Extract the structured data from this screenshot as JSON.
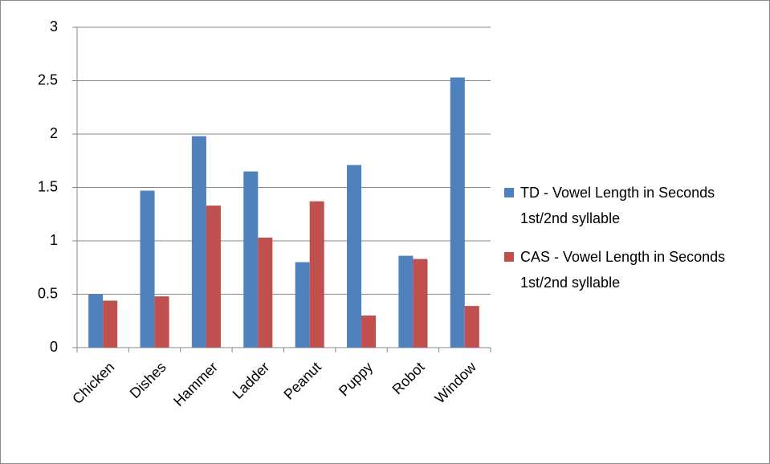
{
  "chart_data": {
    "type": "bar",
    "categories": [
      "Chicken",
      "Dishes",
      "Hammer",
      "Ladder",
      "Peanut",
      "Puppy",
      "Robot",
      "Window"
    ],
    "series": [
      {
        "name": "TD - Vowel Length in Seconds 1st/2nd syllable",
        "color": "#4f81bd",
        "values": [
          0.5,
          1.47,
          1.98,
          1.65,
          0.8,
          1.71,
          0.86,
          2.53
        ]
      },
      {
        "name": "CAS - Vowel Length in Seconds 1st/2nd syllable",
        "color": "#c0504d",
        "values": [
          0.44,
          0.48,
          1.33,
          1.03,
          1.37,
          0.3,
          0.83,
          0.39
        ]
      }
    ],
    "ylim": [
      0,
      3
    ],
    "yticks": [
      0,
      0.5,
      1,
      1.5,
      2,
      2.5,
      3
    ],
    "grid": true,
    "legend": "right"
  }
}
